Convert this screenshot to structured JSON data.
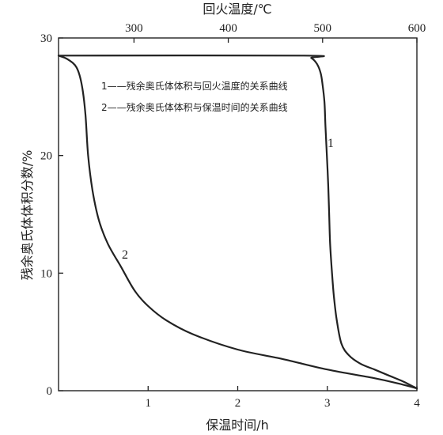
{
  "chart_data": {
    "type": "line",
    "title": "",
    "top_axis": {
      "label": "回火温度/℃",
      "ticks": [
        300,
        400,
        500,
        600
      ],
      "range": [
        220,
        600
      ]
    },
    "bottom_axis": {
      "label": "保温时间/h",
      "ticks": [
        1,
        2,
        3,
        4
      ],
      "range": [
        0,
        4
      ]
    },
    "left_axis": {
      "label": "残余奥氏体体积分数/%",
      "ticks": [
        0,
        10,
        20,
        30
      ],
      "range": [
        0,
        30
      ]
    },
    "series": [
      {
        "name": "残余奥氏体体积与回火温度的关系曲线",
        "label": "1",
        "axis": "top",
        "points": [
          [
            220,
            28.5
          ],
          [
            480,
            28.5
          ],
          [
            488,
            28.3
          ],
          [
            494,
            27.8
          ],
          [
            498,
            27.0
          ],
          [
            500,
            26.0
          ],
          [
            502,
            24.5
          ],
          [
            503,
            22.5
          ],
          [
            504.5,
            20.0
          ],
          [
            506,
            17.5
          ],
          [
            507,
            15.0
          ],
          [
            508,
            12.5
          ],
          [
            510,
            10.0
          ],
          [
            512,
            8.0
          ],
          [
            515,
            6.0
          ],
          [
            520,
            4.0
          ],
          [
            528,
            3.0
          ],
          [
            540,
            2.3
          ],
          [
            555,
            1.8
          ],
          [
            570,
            1.3
          ],
          [
            585,
            0.8
          ],
          [
            595,
            0.4
          ],
          [
            600,
            0.2
          ]
        ]
      },
      {
        "name": "残余奥氏体体积与保温时间的关系曲线",
        "label": "2",
        "axis": "bottom",
        "points": [
          [
            0,
            28.5
          ],
          [
            0.1,
            28.2
          ],
          [
            0.2,
            27.5
          ],
          [
            0.26,
            26.0
          ],
          [
            0.3,
            23.5
          ],
          [
            0.33,
            20.0
          ],
          [
            0.38,
            17.0
          ],
          [
            0.45,
            14.5
          ],
          [
            0.55,
            12.5
          ],
          [
            0.7,
            10.5
          ],
          [
            0.85,
            8.5
          ],
          [
            1.0,
            7.2
          ],
          [
            1.2,
            6.0
          ],
          [
            1.5,
            4.8
          ],
          [
            2.0,
            3.5
          ],
          [
            2.5,
            2.7
          ],
          [
            3.0,
            1.8
          ],
          [
            3.5,
            1.1
          ],
          [
            3.8,
            0.6
          ],
          [
            4.0,
            0.2
          ]
        ]
      }
    ],
    "legend": {
      "position": "top-center",
      "entries": [
        {
          "label": "1",
          "text": "残余奥氏体体积与回火温度的关系曲线"
        },
        {
          "label": "2",
          "text": "残余奥氏体体积与保温时间的关系曲线"
        }
      ]
    },
    "grid": false
  }
}
